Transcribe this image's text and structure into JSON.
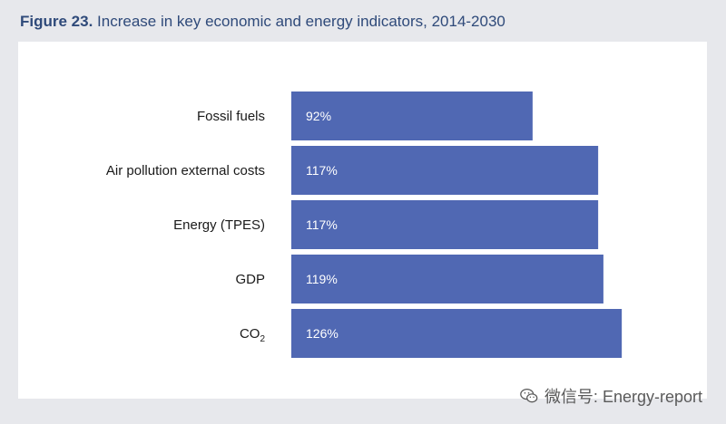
{
  "figure": {
    "number": "Figure 23.",
    "caption": "Increase in key economic and energy indicators, 2014-2030"
  },
  "watermark": {
    "text": "微信号: Energy-report",
    "icon": "wechat-icon"
  },
  "colors": {
    "bar": "#5068b3",
    "title": "#2f4a7a",
    "frame": "#e7e8ec"
  },
  "chart_data": {
    "type": "bar",
    "orientation": "horizontal",
    "categories": [
      "Fossil fuels",
      "Air pollution external costs",
      "Energy (TPES)",
      "GDP",
      "CO2"
    ],
    "values": [
      92,
      117,
      117,
      119,
      126
    ],
    "value_labels": [
      "92%",
      "117%",
      "117%",
      "119%",
      "126%"
    ],
    "unit": "%",
    "title": "Increase in key economic and energy indicators, 2014-2030",
    "xlabel": "",
    "ylabel": "",
    "grid": false,
    "legend": "none"
  }
}
